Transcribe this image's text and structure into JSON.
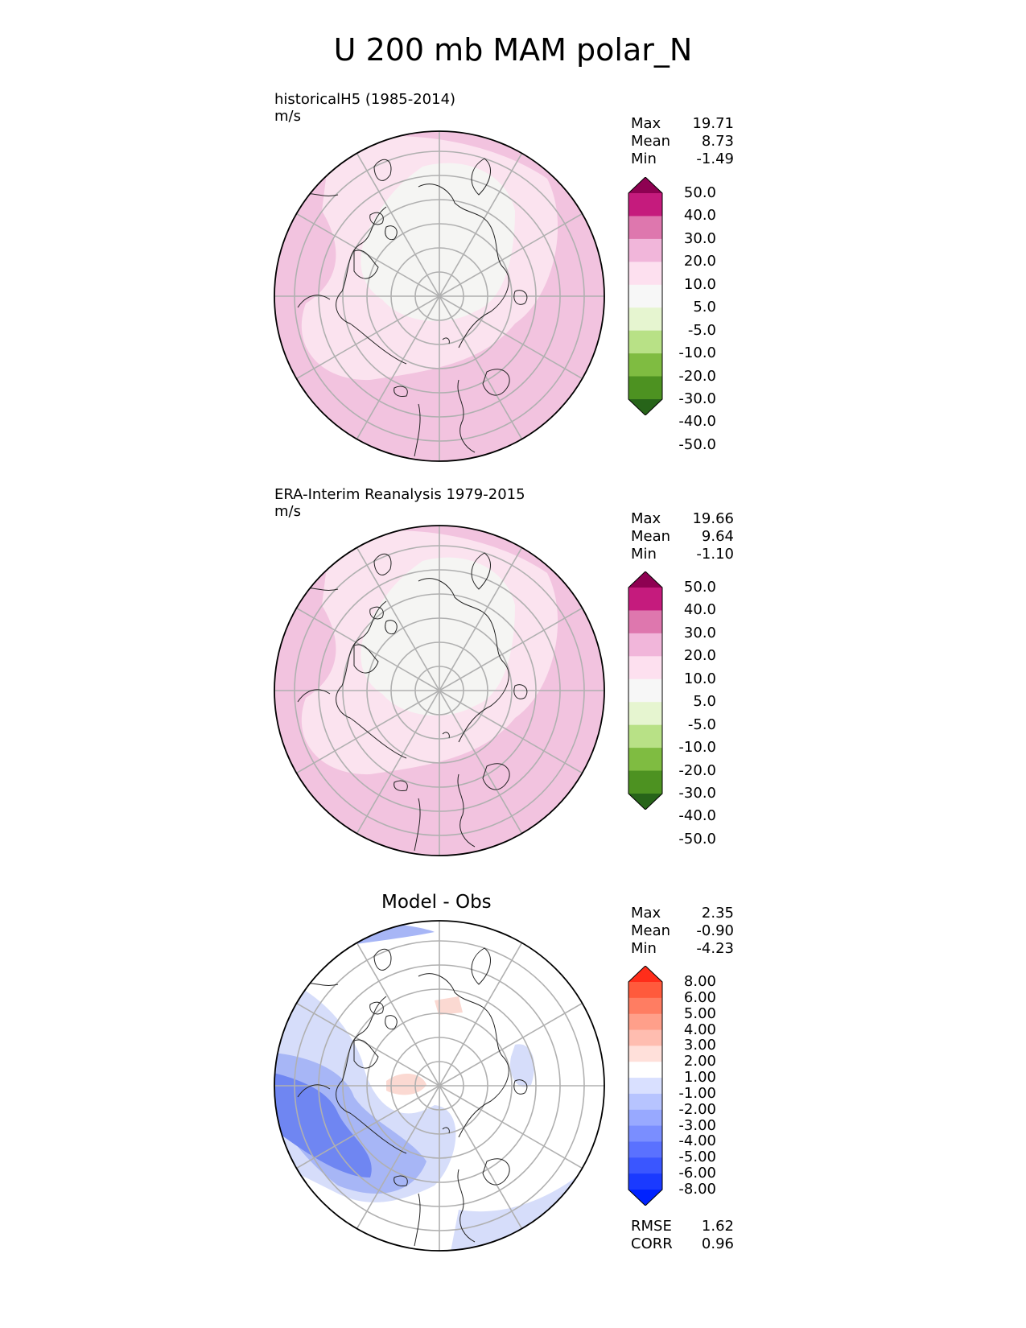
{
  "title": "U 200 mb MAM polar_N",
  "chart_data": [
    {
      "type": "heatmap",
      "projection": "north polar stereographic",
      "title": "historicalH5 (1985-2014)",
      "units": "m/s",
      "stats": {
        "max": "19.71",
        "mean": "8.73",
        "min": "-1.49"
      },
      "colorbar": {
        "levels": [
          "50.0",
          "40.0",
          "30.0",
          "20.0",
          "10.0",
          "5.0",
          "-5.0",
          "-10.0",
          "-20.0",
          "-30.0",
          "-40.0",
          "-50.0"
        ],
        "colors": [
          "#8e0152",
          "#c51b7d",
          "#de77ae",
          "#f1b6da",
          "#fde0ef",
          "#f7f7f7",
          "#e6f5d0",
          "#b8e186",
          "#7fbc41",
          "#4d9221",
          "#276419"
        ],
        "extend": "both"
      },
      "field_colors": {
        "high": "#f2c3df",
        "mid": "#fbe3ef",
        "low": "#f5f5f3"
      }
    },
    {
      "type": "heatmap",
      "projection": "north polar stereographic",
      "title": "ERA-Interim Reanalysis 1979-2015",
      "units": "m/s",
      "stats": {
        "max": "19.66",
        "mean": "9.64",
        "min": "-1.10"
      },
      "colorbar": {
        "levels": [
          "50.0",
          "40.0",
          "30.0",
          "20.0",
          "10.0",
          "5.0",
          "-5.0",
          "-10.0",
          "-20.0",
          "-30.0",
          "-40.0",
          "-50.0"
        ],
        "colors": [
          "#8e0152",
          "#c51b7d",
          "#de77ae",
          "#f1b6da",
          "#fde0ef",
          "#f7f7f7",
          "#e6f5d0",
          "#b8e186",
          "#7fbc41",
          "#4d9221",
          "#276419"
        ],
        "extend": "both"
      },
      "field_colors": {
        "high": "#f2c3df",
        "mid": "#fbe3ef",
        "low": "#f5f5f3"
      }
    },
    {
      "type": "heatmap",
      "projection": "north polar stereographic",
      "title": "Model - Obs",
      "units": "",
      "stats": {
        "max": "2.35",
        "mean": "-0.90",
        "min": "-4.23"
      },
      "metrics": {
        "rmse": "1.62",
        "corr": "0.96"
      },
      "colorbar": {
        "levels": [
          "8.00",
          "6.00",
          "5.00",
          "4.00",
          "3.00",
          "2.00",
          "1.00",
          "-1.00",
          "-2.00",
          "-3.00",
          "-4.00",
          "-5.00",
          "-6.00",
          "-8.00"
        ],
        "colors": [
          "#ff2d1a",
          "#ff5a3c",
          "#ff7d62",
          "#ff9f8a",
          "#ffbdb0",
          "#ffe0da",
          "#ffffff",
          "#d9e0ff",
          "#b7c4ff",
          "#98a9ff",
          "#7a8eff",
          "#5a71ff",
          "#3a56ff",
          "#1a3aff",
          "#0022ff"
        ],
        "extend": "both"
      },
      "field_colors": {
        "strong_neg": "#6f86f2",
        "neg": "#a7b6f6",
        "weak_neg": "#d6ddfa",
        "neutral": "#ffffff",
        "pos": "#fbd9d2"
      }
    }
  ],
  "labels": {
    "max": "Max",
    "mean": "Mean",
    "min": "Min",
    "rmse": "RMSE",
    "corr": "CORR"
  }
}
